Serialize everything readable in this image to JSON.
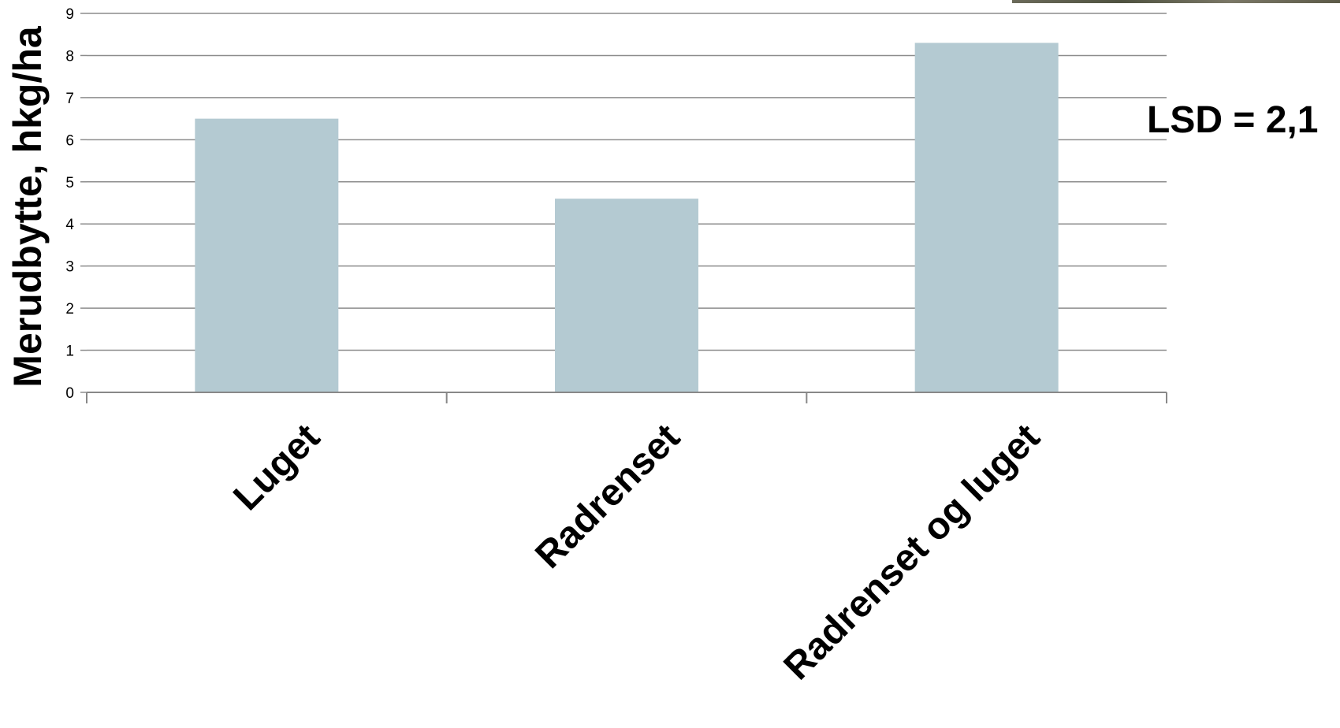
{
  "chart_data": {
    "type": "bar",
    "categories": [
      "Luget",
      "Radrenset",
      "Radrenset og luget"
    ],
    "values": [
      6.5,
      4.6,
      8.3
    ],
    "title": "",
    "xlabel": "",
    "ylabel": "Merudbytte, hkg/ha",
    "ylim": [
      0,
      9
    ],
    "yticks": [
      0,
      1,
      2,
      3,
      4,
      5,
      6,
      7,
      8,
      9
    ],
    "grid": true,
    "bar_color": "#b4cad2",
    "annotation": "LSD = 2,1"
  }
}
